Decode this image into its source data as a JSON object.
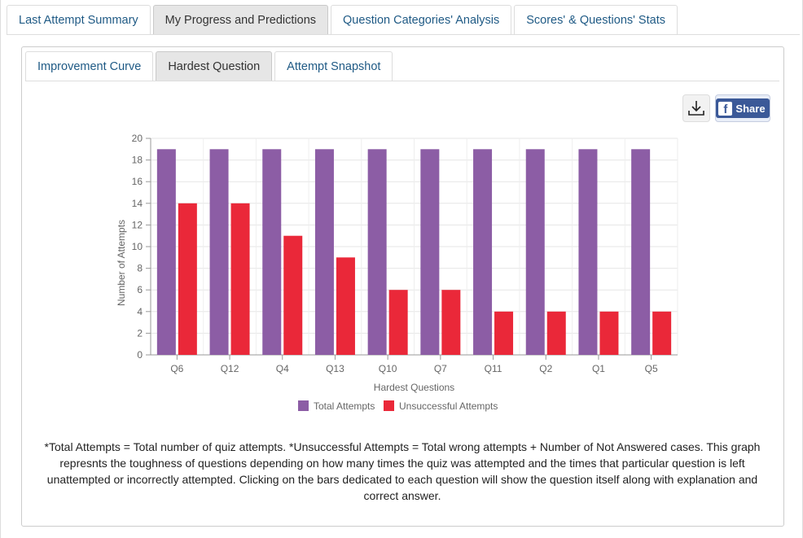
{
  "main_tabs": [
    {
      "label": "Last Attempt Summary"
    },
    {
      "label": "My Progress and Predictions"
    },
    {
      "label": "Question Categories' Analysis"
    },
    {
      "label": "Scores' & Questions' Stats"
    }
  ],
  "sub_tabs": [
    {
      "label": "Improvement Curve"
    },
    {
      "label": "Hardest Question"
    },
    {
      "label": "Attempt Snapshot"
    }
  ],
  "toolbar": {
    "download_icon": "download-icon",
    "share_label": "Share",
    "share_icon": "facebook-icon"
  },
  "colors": {
    "total": "#8c5da5",
    "unsuccessful": "#ea2839"
  },
  "chart_data": {
    "type": "bar",
    "categories": [
      "Q6",
      "Q12",
      "Q4",
      "Q13",
      "Q10",
      "Q7",
      "Q11",
      "Q2",
      "Q1",
      "Q5"
    ],
    "series": [
      {
        "name": "Total Attempts",
        "values": [
          19,
          19,
          19,
          19,
          19,
          19,
          19,
          19,
          19,
          19
        ]
      },
      {
        "name": "Unsuccessful Attempts",
        "values": [
          14,
          14,
          11,
          9,
          6,
          6,
          4,
          4,
          4,
          4
        ]
      }
    ],
    "xlabel": "Hardest Questions",
    "ylabel": "Number of Attempts",
    "ylim": [
      0,
      20
    ],
    "yticks": [
      0,
      2,
      4,
      6,
      8,
      10,
      12,
      14,
      16,
      18,
      20
    ],
    "grid": true,
    "legend_position": "bottom"
  },
  "footnote": "*Total Attempts = Total number of quiz attempts. *Unsuccessful Attempts = Total wrong attempts + Number of Not Answered cases. This graph represnts the toughness of questions depending on how many times the quiz was attempted and the times that particular question is left unattempted or incorrectly attempted. Clicking on the bars dedicated to each question will show the question itself along with explanation and correct answer."
}
